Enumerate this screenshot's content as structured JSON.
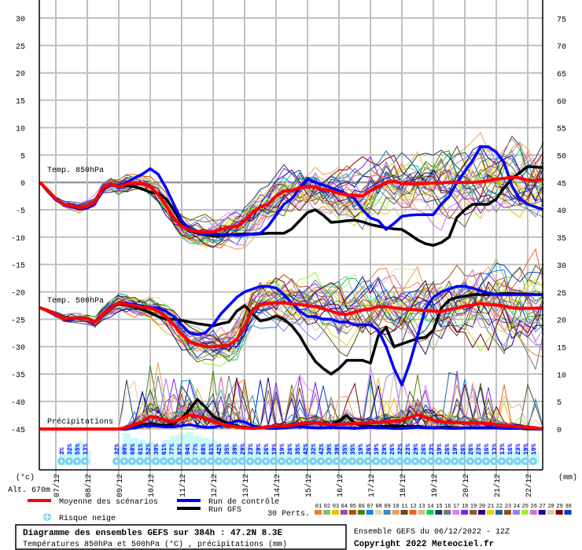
{
  "chart_data": {
    "type": "line",
    "title": "Diagramme des ensembles GEFS sur 384h : 47.2N 8.3E",
    "subtitle": "Températures 850hPa et 500hPa (°C) , précipitations (mm)",
    "run_label": "Ensemble GEFS du 06/12/2022 - 12Z",
    "copyright": "Copyright 2022 Meteociel.fr",
    "left_axis_unit": "(°c)",
    "right_axis_unit": "(mm)",
    "altitude": "Alt. 670m",
    "left_ylim": [
      -45,
      30
    ],
    "left_ticks": [
      30,
      25,
      20,
      15,
      10,
      5,
      0,
      -5,
      -10,
      -15,
      -20,
      -25,
      -30,
      -35,
      -40,
      -45
    ],
    "right_ylim": [
      0,
      75
    ],
    "right_ticks": [
      75,
      70,
      65,
      60,
      55,
      50,
      45,
      40,
      35,
      30,
      25,
      20,
      15,
      10,
      5,
      0
    ],
    "time_step_hours": 6,
    "date_labels": [
      "07/12",
      "08/12",
      "09/12",
      "10/12",
      "11/12",
      "12/12",
      "13/12",
      "14/12",
      "15/12",
      "16/12",
      "17/12",
      "18/12",
      "19/12",
      "20/12",
      "21/12",
      "22/12"
    ],
    "panel_labels": {
      "t850": "Temp. 850hPa",
      "t500": "Temp. 500hPa",
      "precip": "Précipitations"
    },
    "series": [
      {
        "name": "Moyenne des scénarios",
        "color": "#ff0000",
        "t850": [
          0,
          -1.5,
          -3,
          -4,
          -4.3,
          -4.6,
          -4.4,
          -3.5,
          -1,
          -0.3,
          -0.8,
          -0.3,
          -0.1,
          -0.2,
          -0.8,
          -2.2,
          -4.2,
          -6.5,
          -8,
          -8.7,
          -9,
          -9.1,
          -9,
          -8.6,
          -8.2,
          -8,
          -7,
          -5.5,
          -4.5,
          -4,
          -2.5,
          -1.6,
          -1.5,
          -1,
          -0.8,
          -0.9,
          -1.3,
          -1.5,
          -2,
          -2.3,
          -2.4,
          -2.5,
          -1.5,
          -0.8,
          0,
          0.2,
          -0.2,
          -0.3,
          -0.3,
          -0.2,
          -0.1,
          -0.1,
          0,
          0,
          0,
          0,
          0.1,
          0.3,
          0.6,
          0.7,
          1,
          0.8,
          0.4,
          0.3,
          0.6
        ],
        "t500": [
          -22.9,
          -23.5,
          -24.1,
          -25,
          -24.8,
          -24.8,
          -24.8,
          -25.5,
          -24,
          -23,
          -22,
          -22.2,
          -22.5,
          -22.8,
          -22.9,
          -23.5,
          -24.5,
          -26,
          -27.7,
          -29.1,
          -29.6,
          -30,
          -30,
          -29.9,
          -29.7,
          -28.7,
          -26.2,
          -23.4,
          -22.4,
          -22.1,
          -22,
          -22,
          -22.2,
          -22.3,
          -22.5,
          -22.7,
          -23.1,
          -23.5,
          -24,
          -24.1,
          -23.7,
          -23.3,
          -23.1,
          -22.7,
          -22.7,
          -22.9,
          -23.1,
          -23.2,
          -23.3,
          -23.4,
          -23.5,
          -23.6,
          -23.2,
          -23,
          -22.6,
          -22.4,
          -22.1,
          -22.3,
          -22.4,
          -22.6,
          -22.9,
          -23,
          -23,
          -23,
          -22.9
        ],
        "precip": [
          0,
          0,
          0,
          0,
          0,
          0,
          0,
          0,
          0,
          0,
          0,
          0.3,
          0.8,
          1.3,
          2.3,
          2,
          1.6,
          1.3,
          1.9,
          2.6,
          2.3,
          2,
          1.4,
          0.9,
          0.6,
          0.4,
          0.2,
          0.1,
          0.2,
          0.4,
          0.5,
          0.6,
          0.7,
          1,
          1.1,
          1.2,
          0.9,
          0.8,
          0.8,
          0.9,
          1,
          1.1,
          1.1,
          1.2,
          1.3,
          1.4,
          1.6,
          2.1,
          2.6,
          2.2,
          1.6,
          1.3,
          1.2,
          1.2,
          1.1,
          1.1,
          1.1,
          1,
          0.8,
          0.6,
          0.5,
          0.4,
          0.3,
          0.2,
          0
        ]
      },
      {
        "name": "Run de contrôle",
        "color": "#0000ff",
        "t850": [
          0,
          -1.7,
          -3.2,
          -4.1,
          -4.5,
          -4.8,
          -4.6,
          -3.8,
          -1.3,
          -0.5,
          -0.6,
          0,
          0.8,
          1.5,
          2.5,
          1.5,
          -1,
          -4,
          -7,
          -8.5,
          -9.2,
          -9.5,
          -9.4,
          -9.6,
          -9.5,
          -9.7,
          -9.6,
          -9.4,
          -9.3,
          -8,
          -6,
          -4,
          -3,
          -1,
          0.7,
          0,
          -0.5,
          -1,
          -1.5,
          -2.2,
          -3,
          -5,
          -6.5,
          -7,
          -8.6,
          -7.5,
          -6.2,
          -6,
          -5.9,
          -5.9,
          -5.9,
          -4,
          -2.6,
          0,
          2,
          4,
          6.5,
          6.5,
          5.5,
          3.6,
          -0.7,
          -3,
          -4,
          -4.5,
          -5
        ],
        "t500": [
          -22.9,
          -23.5,
          -24,
          -25,
          -24.9,
          -24.7,
          -24.8,
          -25.5,
          -24,
          -22.8,
          -22,
          -22,
          -22.3,
          -22.6,
          -22.8,
          -23,
          -23.5,
          -24.5,
          -26,
          -27.5,
          -27.8,
          -27.5,
          -26,
          -24,
          -22.5,
          -21,
          -20,
          -19.5,
          -19,
          -19,
          -19.3,
          -20.5,
          -22,
          -23.5,
          -24.5,
          -24.5,
          -25,
          -25,
          -25.5,
          -25.5,
          -26,
          -26,
          -26,
          -27,
          -30,
          -34,
          -37,
          -33,
          -28,
          -23,
          -21,
          -20,
          -19.5,
          -19,
          -19,
          -19.3,
          -19.8,
          -20.2,
          -20.5,
          -20.5,
          -20.5,
          -20.5,
          -20.5,
          -20.5,
          -20.5
        ],
        "precip": [
          0,
          0,
          0,
          0,
          0,
          0,
          0,
          0,
          0,
          0,
          0,
          0,
          0.2,
          0.5,
          0.6,
          0.5,
          0.4,
          0.4,
          0.6,
          0.8,
          0.5,
          0.3,
          0.3,
          0.6,
          1,
          1.5,
          1.3,
          0.6,
          0.3,
          0.1,
          0.1,
          0.2,
          0.3,
          0.4,
          0.3,
          0.2,
          0.2,
          0.3,
          0.2,
          0.2,
          0.1,
          0.2,
          0.3,
          0.2,
          0.2,
          0.1,
          0.1,
          0.2,
          0.3,
          0.2,
          0.2,
          0.2,
          0.1,
          0.1,
          0.2,
          0.2,
          0.2,
          0.3,
          0.2,
          0.1,
          0.1,
          0.1,
          0.1,
          0,
          0
        ]
      },
      {
        "name": "Run GFS",
        "color": "#000000",
        "t850": [
          0,
          -1.6,
          -3.1,
          -4,
          -4.4,
          -4.7,
          -4.5,
          -3.6,
          -1.2,
          -0.5,
          -0.7,
          -0.6,
          -0.8,
          -1.2,
          -1.8,
          -2,
          -3,
          -5,
          -7.5,
          -8.8,
          -9.3,
          -9.6,
          -9.8,
          -9.8,
          -9.6,
          -9.5,
          -9.4,
          -9.5,
          -9.4,
          -9.3,
          -9.3,
          -9.3,
          -8.5,
          -7,
          -5.5,
          -5,
          -6,
          -7.3,
          -7.2,
          -7,
          -6.9,
          -7.2,
          -7.7,
          -8,
          -8.3,
          -8.5,
          -8.6,
          -9.5,
          -10.5,
          -11.2,
          -11.5,
          -11,
          -10,
          -6.4,
          -5,
          -4,
          -4,
          -4,
          -3,
          -1,
          0.7,
          1.8,
          2.9,
          2.8,
          2.7
        ],
        "t500": [
          -22.9,
          -23.5,
          -24.1,
          -25,
          -24.8,
          -24.8,
          -24.8,
          -25.5,
          -24,
          -23,
          -22.2,
          -22.4,
          -22.7,
          -23.2,
          -23.8,
          -24.5,
          -25,
          -25,
          -25.2,
          -25.5,
          -25.8,
          -26,
          -26.2,
          -25.8,
          -25.5,
          -23.5,
          -22.5,
          -24,
          -25.3,
          -25,
          -24.4,
          -25,
          -26.2,
          -28,
          -30.5,
          -32.7,
          -34,
          -35,
          -34,
          -32.5,
          -32.5,
          -32.5,
          -33,
          -28,
          -26.5,
          -30,
          -29.5,
          -29,
          -28.5,
          -28.3,
          -27,
          -23,
          -21.5,
          -21,
          -20.8,
          -20.5,
          -20.5,
          -20.5,
          -20.4,
          -20.3,
          -20.3,
          -20.4,
          -20.4,
          -20.5,
          -20.5
        ],
        "precip": [
          0,
          0,
          0,
          0,
          0,
          0,
          0,
          0,
          0,
          0,
          0,
          0,
          0.3,
          0.8,
          1,
          0.8,
          0.6,
          1,
          2,
          3.5,
          5.4,
          4,
          2.3,
          1.6,
          1,
          0.5,
          0.3,
          0.2,
          0.2,
          0.3,
          0.4,
          0.5,
          0.5,
          0.8,
          1,
          1.2,
          1,
          0.8,
          1.5,
          2.5,
          1,
          0.6,
          0.5,
          0.4,
          0.5,
          0.6,
          0.5,
          0.4,
          0.5,
          0.3,
          0.2,
          0.3,
          0.3,
          0.2,
          0.2,
          0.2,
          0.2,
          0.2,
          0.2,
          0.1,
          0.1,
          0.1,
          0,
          0,
          0
        ]
      }
    ],
    "snow_risk": {
      "label": "Risque neige",
      "start_step": 3,
      "values_pct": [
        3,
        32,
        55,
        13,
        null,
        null,
        null,
        32,
        90,
        68,
        61,
        52,
        39,
        61,
        77,
        87,
        94,
        77,
        68,
        61,
        42,
        35,
        39,
        29,
        23,
        29,
        26,
        19,
        19,
        26,
        35,
        42,
        32,
        42,
        39,
        39,
        35,
        35,
        19,
        26,
        19,
        29,
        26,
        32,
        23,
        29,
        26,
        23,
        19,
        26,
        19,
        26,
        26,
        23,
        16,
        13,
        13,
        16,
        23,
        19,
        10
      ]
    },
    "perturbations": {
      "label": "30 Perts.",
      "ids": [
        "01",
        "02",
        "03",
        "04",
        "05",
        "06",
        "07",
        "08",
        "09",
        "10",
        "11",
        "12",
        "13",
        "14",
        "15",
        "16",
        "17",
        "18",
        "19",
        "20",
        "21",
        "22",
        "23",
        "24",
        "25",
        "26",
        "27",
        "28",
        "29",
        "30"
      ],
      "colors": [
        "#e8803a",
        "#88c070",
        "#f0c000",
        "#9050b0",
        "#b05010",
        "#508000",
        "#1080f0",
        "#e8d8b0",
        "#3890c0",
        "#e8a050",
        "#604820",
        "#f06020",
        "#d0c080",
        "#00d060",
        "#204060",
        "#707880",
        "#e080f0",
        "#8020f0",
        "#806030",
        "#300070",
        "#f0d000",
        "#2060a0",
        "#905020",
        "#9080f0",
        "#a0f030",
        "#d070d0",
        "#200090",
        "#e0c8a0",
        "#800000",
        "#0040c0"
      ]
    }
  }
}
